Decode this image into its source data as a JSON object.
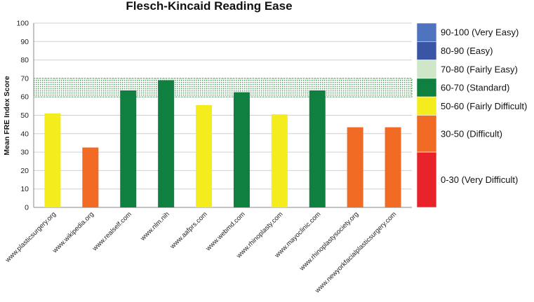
{
  "chart_data": {
    "type": "bar",
    "title": "Flesch-Kincaid Reading Ease",
    "xlabel": "",
    "ylabel": "Mean FRE Index Score",
    "ylim": [
      0,
      100
    ],
    "yticks": [
      "0",
      "10",
      "20",
      "30",
      "40",
      "50",
      "60",
      "70",
      "80",
      "90",
      "100"
    ],
    "grid": true,
    "categories": [
      "www.plasticsurgery.org",
      "www.wikipedia.org",
      "www.realself.com",
      "www.nlm.nih",
      "www.aafprs.com",
      "www.webmd.com",
      "www.rhinoplasty.com",
      "www.mayoclinic.com",
      "www.rhinoplastysociety.org",
      "www.newyorkfacialplasticsurgery.com"
    ],
    "values": [
      51,
      32.5,
      63.5,
      69,
      55.5,
      62.5,
      50.5,
      63.5,
      43.5,
      43.5
    ],
    "bar_colors": [
      "#f4ec1c",
      "#f26b24",
      "#0f8040",
      "#0f8040",
      "#f4ec1c",
      "#0f8040",
      "#f4ec1c",
      "#0f8040",
      "#f26b24",
      "#f26b24"
    ],
    "reference_band": {
      "from": 60,
      "to": 70,
      "color": "#2e8b3a"
    },
    "legend": {
      "placement": "right",
      "entries": [
        {
          "label": "90-100 (Very Easy)",
          "from": 90,
          "to": 100,
          "color": "#4f74bf"
        },
        {
          "label": "80-90 (Easy)",
          "from": 80,
          "to": 90,
          "color": "#3a55a5"
        },
        {
          "label": "70-80 (Fairly Easy)",
          "from": 70,
          "to": 80,
          "color": "#cfe6c8"
        },
        {
          "label": "60-70 (Standard)",
          "from": 60,
          "to": 70,
          "color": "#0f8040"
        },
        {
          "label": "50-60 (Fairly Difficult)",
          "from": 50,
          "to": 60,
          "color": "#f4ec1c"
        },
        {
          "label": "30-50 (Difficult)",
          "from": 30,
          "to": 50,
          "color": "#f26b24"
        },
        {
          "label": "0-30 (Very Difficult)",
          "from": 0,
          "to": 30,
          "color": "#e8232a"
        }
      ]
    }
  }
}
